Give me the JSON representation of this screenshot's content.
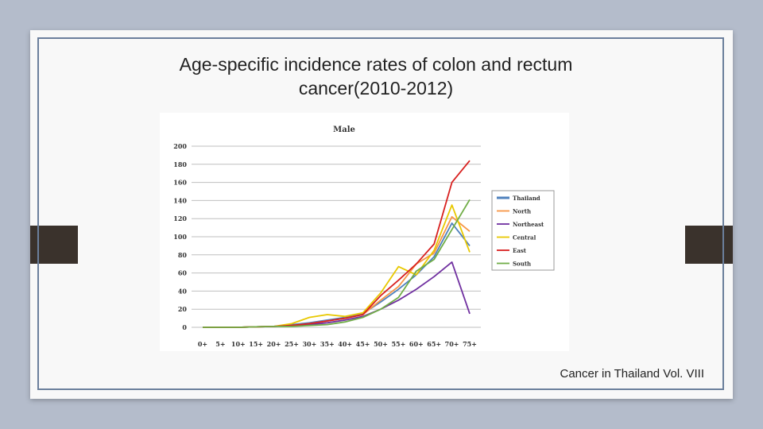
{
  "slide": {
    "title": "Age-specific incidence rates of colon and rectum cancer(2010-2012)",
    "caption": "Cancer in Thailand Vol. VIII"
  },
  "chart_data": {
    "type": "line",
    "title": "Male",
    "xlabel": "",
    "ylabel": "",
    "x": [
      "0+",
      "5+",
      "10+",
      "15+",
      "20+",
      "25+",
      "30+",
      "35+",
      "40+",
      "45+",
      "50+",
      "55+",
      "60+",
      "65+",
      "70+",
      "75+"
    ],
    "ylim": [
      0,
      200
    ],
    "yticks": [
      0,
      20,
      40,
      60,
      80,
      100,
      120,
      140,
      160,
      180,
      200
    ],
    "grid": true,
    "legend_position": "right",
    "series": [
      {
        "name": "Thailand",
        "color": "#4f81bd",
        "values": [
          0,
          0,
          0,
          0.5,
          1,
          3,
          5,
          8,
          11,
          15,
          28,
          42,
          58,
          78,
          115,
          90
        ]
      },
      {
        "name": "North",
        "color": "#f79646",
        "values": [
          0,
          0,
          0,
          0.5,
          1,
          2,
          4,
          7,
          10,
          14,
          30,
          45,
          70,
          82,
          122,
          106
        ]
      },
      {
        "name": "Northeast",
        "color": "#7030a0",
        "values": [
          0,
          0,
          0,
          0.5,
          1,
          2,
          3,
          5,
          8,
          12,
          20,
          30,
          42,
          56,
          72,
          15
        ]
      },
      {
        "name": "Central",
        "color": "#e8c800",
        "values": [
          0,
          0,
          0,
          0.5,
          1,
          4,
          11,
          14,
          12,
          16,
          38,
          67,
          58,
          85,
          135,
          83
        ]
      },
      {
        "name": "East",
        "color": "#d8201f",
        "values": [
          0,
          0,
          0,
          0.5,
          1,
          2,
          4,
          7,
          10,
          14,
          35,
          52,
          70,
          92,
          160,
          184
        ]
      },
      {
        "name": "South",
        "color": "#70ad47",
        "values": [
          0,
          0,
          0,
          0.5,
          1,
          1,
          2,
          3,
          6,
          11,
          20,
          33,
          62,
          75,
          108,
          141
        ]
      }
    ]
  }
}
